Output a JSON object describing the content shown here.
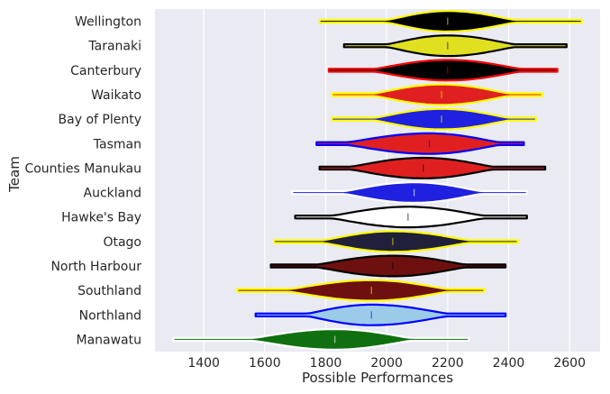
{
  "chart_data": {
    "type": "violin",
    "orientation": "horizontal",
    "xlabel": "Possible Performances",
    "ylabel": "Team",
    "xlim": [
      1240,
      2700
    ],
    "xticks": [
      1400,
      1600,
      1800,
      2000,
      2200,
      2400,
      2600
    ],
    "grid": true,
    "background": "#eaeaf2",
    "teams": [
      {
        "name": "Wellington",
        "min": 1780,
        "max": 2640,
        "median": 2200,
        "body_lo": 2000,
        "body_hi": 2420,
        "peak": 2200,
        "fill": "#000000",
        "edge": "#ffff00"
      },
      {
        "name": "Taranaki",
        "min": 1860,
        "max": 2590,
        "median": 2200,
        "body_lo": 2000,
        "body_hi": 2420,
        "peak": 2200,
        "fill": "#e0e020",
        "edge": "#000000"
      },
      {
        "name": "Canterbury",
        "min": 1810,
        "max": 2560,
        "median": 2200,
        "body_lo": 1960,
        "body_hi": 2440,
        "peak": 2200,
        "fill": "#000000",
        "edge": "#ff0000"
      },
      {
        "name": "Waikato",
        "min": 1820,
        "max": 2510,
        "median": 2180,
        "body_lo": 1960,
        "body_hi": 2400,
        "peak": 2180,
        "fill": "#e02020",
        "edge": "#ffff00"
      },
      {
        "name": "Bay of Plenty",
        "min": 1820,
        "max": 2490,
        "median": 2180,
        "body_lo": 1960,
        "body_hi": 2400,
        "peak": 2180,
        "fill": "#2020e0",
        "edge": "#ffff00"
      },
      {
        "name": "Tasman",
        "min": 1770,
        "max": 2450,
        "median": 2140,
        "body_lo": 1870,
        "body_hi": 2370,
        "peak": 2140,
        "fill": "#e02020",
        "edge": "#0000ff"
      },
      {
        "name": "Counties Manukau",
        "min": 1780,
        "max": 2520,
        "median": 2120,
        "body_lo": 1880,
        "body_hi": 2350,
        "peak": 2120,
        "fill": "#e02020",
        "edge": "#000000"
      },
      {
        "name": "Auckland",
        "min": 1690,
        "max": 2460,
        "median": 2090,
        "body_lo": 1860,
        "body_hi": 2310,
        "peak": 2090,
        "fill": "#2020e0",
        "edge": "#ffffff"
      },
      {
        "name": "Hawke's Bay",
        "min": 1700,
        "max": 2460,
        "median": 2070,
        "body_lo": 1820,
        "body_hi": 2320,
        "peak": 2070,
        "fill": "#ffffff",
        "edge": "#000000"
      },
      {
        "name": "Otago",
        "min": 1630,
        "max": 2430,
        "median": 2020,
        "body_lo": 1790,
        "body_hi": 2270,
        "peak": 2020,
        "fill": "#20203a",
        "edge": "#ffff00"
      },
      {
        "name": "North Harbour",
        "min": 1620,
        "max": 2390,
        "median": 2020,
        "body_lo": 1770,
        "body_hi": 2260,
        "peak": 2020,
        "fill": "#6e1010",
        "edge": "#000000"
      },
      {
        "name": "Southland",
        "min": 1510,
        "max": 2320,
        "median": 1950,
        "body_lo": 1680,
        "body_hi": 2200,
        "peak": 1950,
        "fill": "#6e1010",
        "edge": "#ffff00"
      },
      {
        "name": "Northland",
        "min": 1570,
        "max": 2390,
        "median": 1950,
        "body_lo": 1740,
        "body_hi": 2200,
        "peak": 1950,
        "fill": "#9ccbea",
        "edge": "#0000ff"
      },
      {
        "name": "Manawatu",
        "min": 1300,
        "max": 2270,
        "median": 1830,
        "body_lo": 1560,
        "body_hi": 2080,
        "peak": 1830,
        "fill": "#107010",
        "edge": "#ffffff"
      }
    ]
  }
}
